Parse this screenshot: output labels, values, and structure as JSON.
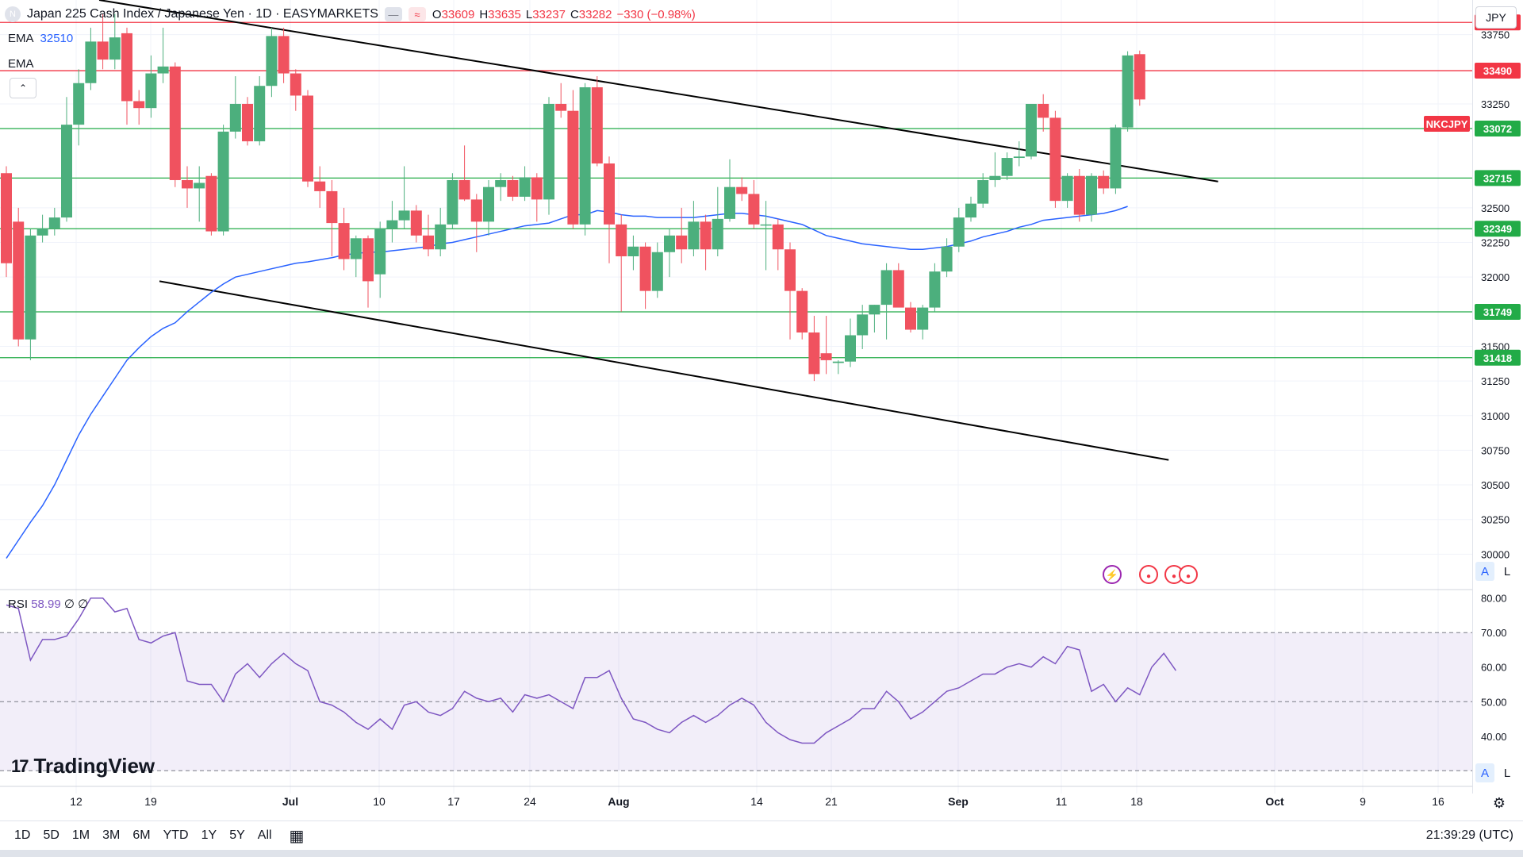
{
  "header": {
    "symbol_initial": "N",
    "title": "Japan 225 Cash Index / Japanese Yen · 1D · EASYMARKETS",
    "ohlc": [
      {
        "k": "O",
        "v": "33609"
      },
      {
        "k": "H",
        "v": "33635"
      },
      {
        "k": "L",
        "v": "33237"
      },
      {
        "k": "C",
        "v": "33282"
      },
      {
        "k": "",
        "v": "−330 (−0.98%)"
      }
    ],
    "ema1_label": "EMA",
    "ema1_value": "32510",
    "ema2_label": "EMA",
    "currency": "JPY",
    "collapse_icon": "⌃"
  },
  "colors": {
    "up": "#4caf7d",
    "down": "#f0525f",
    "ema": "#2962ff",
    "rsi": "#7e57c2",
    "resistance": "#f23645",
    "support": "#22ab47",
    "trend": "#000000"
  },
  "chart_data": {
    "type": "candlestick",
    "title": "Japan 225 Cash Index / Japanese Yen · 1D · EASYMARKETS",
    "x_ticks": [
      "12",
      "19",
      "Jul",
      "10",
      "17",
      "24",
      "Aug",
      "14",
      "21",
      "Sep",
      "11",
      "18",
      "Oct",
      "9",
      "16"
    ],
    "y_ticks": [
      30000,
      30250,
      30500,
      30750,
      31000,
      31250,
      31500,
      32000,
      32250,
      32500,
      33250,
      33750
    ],
    "ylim": [
      29750,
      34000
    ],
    "candles": [
      {
        "o": 32750,
        "h": 32800,
        "l": 32000,
        "c": 32100
      },
      {
        "o": 32400,
        "h": 32500,
        "l": 31500,
        "c": 31550
      },
      {
        "o": 31550,
        "h": 32350,
        "l": 31400,
        "c": 32300
      },
      {
        "o": 32300,
        "h": 32450,
        "l": 32250,
        "c": 32350
      },
      {
        "o": 32350,
        "h": 32500,
        "l": 32300,
        "c": 32430
      },
      {
        "o": 32430,
        "h": 33300,
        "l": 32400,
        "c": 33100
      },
      {
        "o": 33100,
        "h": 33500,
        "l": 32950,
        "c": 33400
      },
      {
        "o": 33400,
        "h": 33800,
        "l": 33350,
        "c": 33700
      },
      {
        "o": 33700,
        "h": 33900,
        "l": 33500,
        "c": 33570
      },
      {
        "o": 33570,
        "h": 33900,
        "l": 33500,
        "c": 33730
      },
      {
        "o": 33760,
        "h": 33800,
        "l": 33100,
        "c": 33270
      },
      {
        "o": 33270,
        "h": 33350,
        "l": 33100,
        "c": 33220
      },
      {
        "o": 33220,
        "h": 33600,
        "l": 33150,
        "c": 33470
      },
      {
        "o": 33470,
        "h": 33800,
        "l": 33400,
        "c": 33520
      },
      {
        "o": 33520,
        "h": 33550,
        "l": 32650,
        "c": 32700
      },
      {
        "o": 32700,
        "h": 32800,
        "l": 32500,
        "c": 32640
      },
      {
        "o": 32640,
        "h": 32800,
        "l": 32400,
        "c": 32680
      },
      {
        "o": 32730,
        "h": 32750,
        "l": 32300,
        "c": 32330
      },
      {
        "o": 32330,
        "h": 33100,
        "l": 32300,
        "c": 33050
      },
      {
        "o": 33050,
        "h": 33450,
        "l": 33000,
        "c": 33250
      },
      {
        "o": 33250,
        "h": 33300,
        "l": 32950,
        "c": 32980
      },
      {
        "o": 32980,
        "h": 33450,
        "l": 32950,
        "c": 33380
      },
      {
        "o": 33380,
        "h": 33800,
        "l": 33300,
        "c": 33740
      },
      {
        "o": 33740,
        "h": 33800,
        "l": 33400,
        "c": 33470
      },
      {
        "o": 33470,
        "h": 33500,
        "l": 33200,
        "c": 33310
      },
      {
        "o": 33310,
        "h": 33350,
        "l": 32650,
        "c": 32690
      },
      {
        "o": 32690,
        "h": 32800,
        "l": 32500,
        "c": 32620
      },
      {
        "o": 32620,
        "h": 32700,
        "l": 32150,
        "c": 32390
      },
      {
        "o": 32390,
        "h": 32500,
        "l": 32050,
        "c": 32130
      },
      {
        "o": 32130,
        "h": 32300,
        "l": 32000,
        "c": 32280
      },
      {
        "o": 32280,
        "h": 32300,
        "l": 31780,
        "c": 31970
      },
      {
        "o": 32020,
        "h": 32400,
        "l": 31850,
        "c": 32350
      },
      {
        "o": 32350,
        "h": 32550,
        "l": 32250,
        "c": 32410
      },
      {
        "o": 32410,
        "h": 32800,
        "l": 32350,
        "c": 32480
      },
      {
        "o": 32480,
        "h": 32520,
        "l": 32250,
        "c": 32300
      },
      {
        "o": 32300,
        "h": 32450,
        "l": 32150,
        "c": 32200
      },
      {
        "o": 32200,
        "h": 32500,
        "l": 32150,
        "c": 32380
      },
      {
        "o": 32380,
        "h": 32750,
        "l": 32350,
        "c": 32700
      },
      {
        "o": 32700,
        "h": 32950,
        "l": 32550,
        "c": 32560
      },
      {
        "o": 32560,
        "h": 32600,
        "l": 32180,
        "c": 32400
      },
      {
        "o": 32400,
        "h": 32700,
        "l": 32300,
        "c": 32650
      },
      {
        "o": 32650,
        "h": 32750,
        "l": 32550,
        "c": 32700
      },
      {
        "o": 32700,
        "h": 32730,
        "l": 32550,
        "c": 32580
      },
      {
        "o": 32580,
        "h": 32800,
        "l": 32550,
        "c": 32720
      },
      {
        "o": 32720,
        "h": 32750,
        "l": 32400,
        "c": 32560
      },
      {
        "o": 32560,
        "h": 33300,
        "l": 32450,
        "c": 33250
      },
      {
        "o": 33250,
        "h": 33400,
        "l": 33150,
        "c": 33200
      },
      {
        "o": 33200,
        "h": 33350,
        "l": 32350,
        "c": 32380
      },
      {
        "o": 32380,
        "h": 33400,
        "l": 32300,
        "c": 33370
      },
      {
        "o": 33370,
        "h": 33450,
        "l": 32800,
        "c": 32820
      },
      {
        "o": 32820,
        "h": 32870,
        "l": 32100,
        "c": 32380
      },
      {
        "o": 32380,
        "h": 32450,
        "l": 31750,
        "c": 32150
      },
      {
        "o": 32150,
        "h": 32300,
        "l": 32050,
        "c": 32220
      },
      {
        "o": 32220,
        "h": 32250,
        "l": 31770,
        "c": 31900
      },
      {
        "o": 31900,
        "h": 32250,
        "l": 31850,
        "c": 32180
      },
      {
        "o": 32180,
        "h": 32350,
        "l": 32000,
        "c": 32300
      },
      {
        "o": 32300,
        "h": 32500,
        "l": 32100,
        "c": 32200
      },
      {
        "o": 32200,
        "h": 32550,
        "l": 32150,
        "c": 32400
      },
      {
        "o": 32400,
        "h": 32450,
        "l": 32050,
        "c": 32200
      },
      {
        "o": 32200,
        "h": 32650,
        "l": 32150,
        "c": 32420
      },
      {
        "o": 32420,
        "h": 32850,
        "l": 32400,
        "c": 32650
      },
      {
        "o": 32650,
        "h": 32720,
        "l": 32550,
        "c": 32600
      },
      {
        "o": 32600,
        "h": 32700,
        "l": 32350,
        "c": 32380
      },
      {
        "o": 32380,
        "h": 32550,
        "l": 32050,
        "c": 32380
      },
      {
        "o": 32380,
        "h": 32420,
        "l": 32050,
        "c": 32200
      },
      {
        "o": 32200,
        "h": 32250,
        "l": 31550,
        "c": 31900
      },
      {
        "o": 31900,
        "h": 31920,
        "l": 31550,
        "c": 31600
      },
      {
        "o": 31600,
        "h": 31720,
        "l": 31250,
        "c": 31300
      },
      {
        "o": 31450,
        "h": 31720,
        "l": 31300,
        "c": 31400
      },
      {
        "o": 31380,
        "h": 31400,
        "l": 31300,
        "c": 31390
      },
      {
        "o": 31390,
        "h": 31700,
        "l": 31350,
        "c": 31580
      },
      {
        "o": 31580,
        "h": 31800,
        "l": 31480,
        "c": 31730
      },
      {
        "o": 31730,
        "h": 31800,
        "l": 31600,
        "c": 31800
      },
      {
        "o": 31800,
        "h": 32100,
        "l": 31550,
        "c": 32050
      },
      {
        "o": 32050,
        "h": 32100,
        "l": 31800,
        "c": 31780
      },
      {
        "o": 31780,
        "h": 31820,
        "l": 31600,
        "c": 31620
      },
      {
        "o": 31620,
        "h": 31800,
        "l": 31550,
        "c": 31780
      },
      {
        "o": 31780,
        "h": 32100,
        "l": 31750,
        "c": 32040
      },
      {
        "o": 32040,
        "h": 32280,
        "l": 32000,
        "c": 32220
      },
      {
        "o": 32220,
        "h": 32500,
        "l": 32180,
        "c": 32430
      },
      {
        "o": 32430,
        "h": 32580,
        "l": 32400,
        "c": 32530
      },
      {
        "o": 32530,
        "h": 32750,
        "l": 32500,
        "c": 32700
      },
      {
        "o": 32700,
        "h": 32900,
        "l": 32650,
        "c": 32730
      },
      {
        "o": 32730,
        "h": 32900,
        "l": 32700,
        "c": 32860
      },
      {
        "o": 32860,
        "h": 32980,
        "l": 32800,
        "c": 32870
      },
      {
        "o": 32870,
        "h": 33250,
        "l": 32850,
        "c": 33250
      },
      {
        "o": 33250,
        "h": 33320,
        "l": 33050,
        "c": 33150
      },
      {
        "o": 33150,
        "h": 33200,
        "l": 32500,
        "c": 32550
      },
      {
        "o": 32550,
        "h": 32750,
        "l": 32500,
        "c": 32730
      },
      {
        "o": 32730,
        "h": 32780,
        "l": 32400,
        "c": 32450
      },
      {
        "o": 32450,
        "h": 32750,
        "l": 32400,
        "c": 32730
      },
      {
        "o": 32730,
        "h": 32770,
        "l": 32600,
        "c": 32640
      },
      {
        "o": 32640,
        "h": 33100,
        "l": 32600,
        "c": 33080
      },
      {
        "o": 33080,
        "h": 33630,
        "l": 33050,
        "c": 33600
      },
      {
        "o": 33609,
        "h": 33635,
        "l": 33237,
        "c": 33282
      }
    ],
    "ema_series": {
      "name": "EMA",
      "values": [
        29970,
        30100,
        30230,
        30350,
        30500,
        30680,
        30860,
        31010,
        31140,
        31270,
        31400,
        31490,
        31570,
        31630,
        31670,
        31750,
        31820,
        31890,
        31950,
        32000,
        32020,
        32040,
        32060,
        32080,
        32100,
        32110,
        32125,
        32140,
        32160,
        32170,
        32180,
        32180,
        32190,
        32200,
        32210,
        32220,
        32240,
        32250,
        32270,
        32290,
        32310,
        32330,
        32350,
        32370,
        32380,
        32390,
        32420,
        32450,
        32450,
        32480,
        32470,
        32450,
        32440,
        32440,
        32430,
        32430,
        32430,
        32430,
        32440,
        32450,
        32460,
        32460,
        32450,
        32440,
        32420,
        32400,
        32380,
        32340,
        32300,
        32280,
        32260,
        32240,
        32230,
        32220,
        32210,
        32200,
        32200,
        32210,
        32220,
        32240,
        32260,
        32290,
        32310,
        32330,
        32360,
        32380,
        32410,
        32420,
        32430,
        32440,
        32450,
        32460,
        32480,
        32510
      ]
    },
    "horizontal_levels": [
      {
        "value": 33838,
        "label": "33838",
        "kind": "resistance"
      },
      {
        "value": 33490,
        "label": "33490",
        "kind": "resistance"
      },
      {
        "value": 33072,
        "label": "33072",
        "kind": "support"
      },
      {
        "value": 32715,
        "label": "32715",
        "kind": "support"
      },
      {
        "value": 32349,
        "label": "32349",
        "kind": "support"
      },
      {
        "value": 31749,
        "label": "31749",
        "kind": "support"
      },
      {
        "value": 31418,
        "label": "31418",
        "kind": "support"
      }
    ],
    "trend_lines": [
      {
        "x1": 7.7,
        "y1": 34000,
        "x2": 100.5,
        "y2": 32690
      },
      {
        "x1": 12.7,
        "y1": 31970,
        "x2": 96.4,
        "y2": 30680
      }
    ],
    "symbol_tag": "NKCJPY",
    "rsi": {
      "label": "RSI",
      "value": "58.99",
      "extra": [
        "∅",
        "∅"
      ],
      "y_ticks": [
        "80.00",
        "70.00",
        "60.00",
        "50.00",
        "40.00"
      ],
      "ylim": [
        28,
        82
      ],
      "band": [
        30,
        70
      ],
      "values": [
        78,
        77,
        62,
        68,
        68,
        69,
        74,
        80,
        80,
        76,
        77,
        68,
        67,
        69,
        70,
        56,
        55,
        55,
        50,
        58,
        61,
        57,
        61,
        64,
        61,
        59,
        50,
        49,
        47,
        44,
        42,
        45,
        42,
        49,
        50,
        47,
        46,
        48,
        53,
        51,
        50,
        51,
        47,
        52,
        51,
        52,
        50,
        48,
        57,
        57,
        59,
        51,
        45,
        44,
        42,
        41,
        44,
        46,
        44,
        46,
        49,
        51,
        49,
        44,
        41,
        39,
        38,
        38,
        41,
        43,
        45,
        48,
        48,
        53,
        50,
        45,
        47,
        50,
        53,
        54,
        56,
        58,
        58,
        60,
        61,
        60,
        63,
        61,
        66,
        65,
        53,
        55,
        50,
        54,
        52,
        60,
        64,
        59
      ]
    }
  },
  "overlay_icons": {
    "lightning": "⚡",
    "record": "●"
  },
  "axis_buttons": {
    "auto": "A",
    "log": "L"
  },
  "logo": {
    "mark": "17",
    "text": "TradingView"
  },
  "ranges": [
    "1D",
    "5D",
    "1M",
    "3M",
    "6M",
    "YTD",
    "1Y",
    "5Y",
    "All"
  ],
  "clock": "21:39:29 (UTC)"
}
